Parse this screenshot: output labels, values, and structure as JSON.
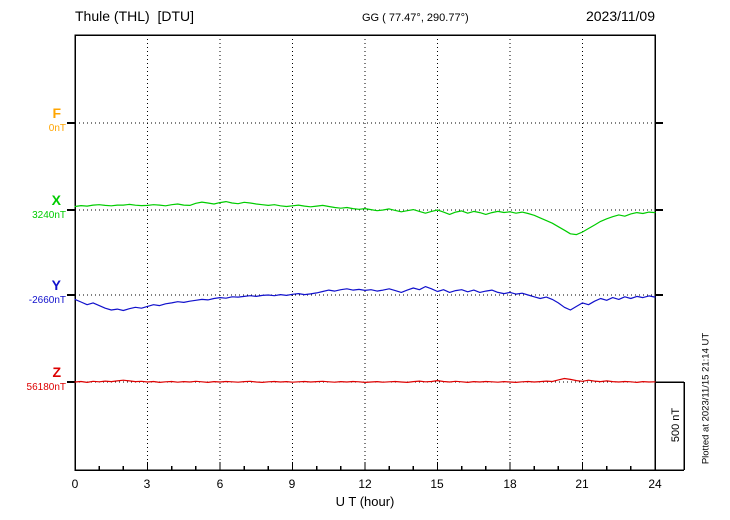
{
  "chart_data": {
    "type": "line",
    "station": "Thule (THL)  [DTU]",
    "coordinates": "GG ( 77.47°, 290.77°)",
    "date": "2023/11/09",
    "xlabel": "U T (hour)",
    "x_range_hours": [
      0,
      24
    ],
    "x_tick_labels": [
      "0",
      "3",
      "6",
      "9",
      "12",
      "15",
      "18",
      "21",
      "24"
    ],
    "x_minor_tick_step_hours": 1,
    "grid": "dotted",
    "scale_bar_label": "500 nT",
    "scale_bar_nT": 500,
    "plotted_note": "Plotted at 2023/11/15 21:14 UT",
    "sampling_note": "values evenly spaced over 0-24 h UT, nT relative to each component baseline",
    "series": [
      {
        "name": "F",
        "label": "F",
        "baseline_label": "0nT",
        "baseline_nT": 0,
        "color": "#ffa500",
        "values": []
      },
      {
        "name": "X",
        "label": "X",
        "baseline_label": "3240nT",
        "baseline_nT": 3240,
        "color": "#00cc00",
        "values": [
          20,
          25,
          22,
          28,
          30,
          26,
          24,
          28,
          28,
          32,
          27,
          25,
          26,
          30,
          28,
          24,
          30,
          34,
          28,
          26,
          38,
          45,
          40,
          34,
          42,
          48,
          40,
          36,
          44,
          40,
          34,
          30,
          26,
          30,
          24,
          20,
          24,
          28,
          22,
          18,
          22,
          26,
          20,
          14,
          10,
          14,
          8,
          4,
          8,
          2,
          -4,
          0,
          6,
          -2,
          -10,
          -4,
          2,
          -8,
          -18,
          -8,
          0,
          -12,
          -25,
          -12,
          -5,
          -18,
          -8,
          -15,
          -25,
          -15,
          -8,
          -14,
          -10,
          -18,
          -12,
          -20,
          -30,
          -45,
          -60,
          -75,
          -95,
          -115,
          -135,
          -140,
          -125,
          -105,
          -85,
          -65,
          -50,
          -38,
          -28,
          -35,
          -22,
          -15,
          -20,
          -12,
          -15
        ]
      },
      {
        "name": "Y",
        "label": "Y",
        "baseline_label": "-2660nT",
        "baseline_nT": -2660,
        "color": "#1111cc",
        "values": [
          -25,
          -40,
          -55,
          -45,
          -60,
          -75,
          -85,
          -80,
          -88,
          -78,
          -70,
          -75,
          -65,
          -55,
          -60,
          -50,
          -45,
          -38,
          -42,
          -35,
          -30,
          -25,
          -28,
          -20,
          -15,
          -18,
          -10,
          -12,
          -8,
          -4,
          -8,
          -2,
          0,
          -4,
          2,
          -2,
          4,
          8,
          2,
          6,
          12,
          20,
          28,
          22,
          30,
          35,
          28,
          32,
          26,
          30,
          22,
          28,
          35,
          25,
          15,
          28,
          40,
          30,
          48,
          35,
          20,
          30,
          15,
          25,
          30,
          18,
          28,
          15,
          22,
          28,
          15,
          8,
          15,
          5,
          10,
          0,
          -10,
          -20,
          -12,
          -25,
          -45,
          -70,
          -85,
          -65,
          -45,
          -55,
          -35,
          -20,
          -30,
          -15,
          -25,
          -10,
          -20,
          -8,
          -15,
          -5,
          -12
        ]
      },
      {
        "name": "Z",
        "label": "Z",
        "baseline_label": "56180nT",
        "baseline_nT": 56180,
        "color": "#dd0000",
        "values": [
          0,
          3,
          -2,
          4,
          1,
          5,
          2,
          6,
          10,
          6,
          2,
          4,
          0,
          3,
          -2,
          1,
          3,
          -1,
          2,
          0,
          4,
          1,
          -2,
          2,
          0,
          3,
          1,
          -1,
          2,
          4,
          0,
          -2,
          1,
          3,
          0,
          2,
          -1,
          1,
          3,
          0,
          2,
          4,
          1,
          -1,
          2,
          0,
          3,
          1,
          -2,
          0,
          2,
          -1,
          1,
          3,
          0,
          -2,
          2,
          5,
          1,
          3,
          8,
          3,
          0,
          4,
          1,
          -2,
          2,
          0,
          3,
          1,
          -1,
          2,
          0,
          -2,
          1,
          3,
          0,
          2,
          5,
          3,
          12,
          20,
          15,
          8,
          4,
          10,
          5,
          2,
          6,
          2,
          0,
          3,
          1,
          -2,
          2,
          0,
          1
        ]
      }
    ]
  }
}
